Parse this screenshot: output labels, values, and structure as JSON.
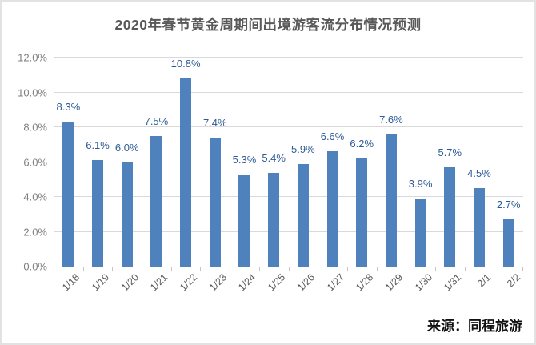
{
  "chart_data": {
    "type": "bar",
    "title": "2020年春节黄金周期间出境游客流分布情况预测",
    "categories": [
      "1/18",
      "1/19",
      "1/20",
      "1/21",
      "1/22",
      "1/23",
      "1/24",
      "1/25",
      "1/26",
      "1/27",
      "1/28",
      "1/29",
      "1/30",
      "1/31",
      "2/1",
      "2/2"
    ],
    "values": [
      8.3,
      6.1,
      6.0,
      7.5,
      10.8,
      7.4,
      5.3,
      5.4,
      5.9,
      6.6,
      6.2,
      7.6,
      3.9,
      5.7,
      4.5,
      2.7
    ],
    "data_labels": [
      "8.3%",
      "6.1%",
      "6.0%",
      "7.5%",
      "10.8%",
      "7.4%",
      "5.3%",
      "5.4%",
      "5.9%",
      "6.6%",
      "6.2%",
      "7.6%",
      "3.9%",
      "5.7%",
      "4.5%",
      "2.7%"
    ],
    "xlabel": "",
    "ylabel": "",
    "ylim": [
      0,
      12
    ],
    "ytick_step": 2,
    "ytick_labels": [
      "0.0%",
      "2.0%",
      "4.0%",
      "6.0%",
      "8.0%",
      "10.0%",
      "12.0%"
    ],
    "grid": true,
    "legend": false,
    "x_tick_rotation_deg": -45
  },
  "source_label": "来源：同程旅游",
  "colors": {
    "bar": "#4f81bd",
    "data_label": "#2e5b94",
    "title_text": "#595959",
    "axis_text": "#7f7f7f",
    "x_axis_text": "#595959",
    "gridline": "#d9d9d9",
    "axis_line": "#c6c6c6",
    "frame_border": "#e2e2e2",
    "source_text": "#111111"
  }
}
